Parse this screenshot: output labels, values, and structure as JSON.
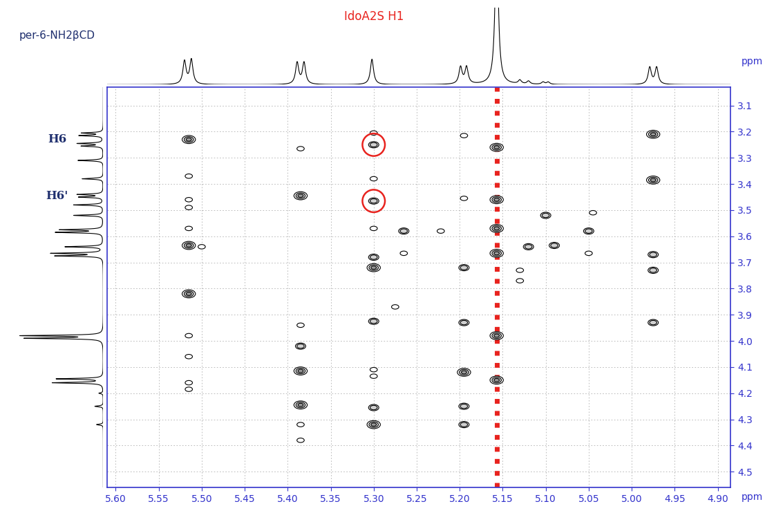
{
  "chart_data": {
    "type": "nmr_2d",
    "x_label": "ppm",
    "y_label": "ppm",
    "xlim": [
      5.61,
      4.885
    ],
    "ylim": [
      4.56,
      3.03
    ],
    "xticks": [
      {
        "value": 5.6,
        "label": "5.60"
      },
      {
        "value": 5.55,
        "label": "5.55"
      },
      {
        "value": 5.5,
        "label": "5.50"
      },
      {
        "value": 5.45,
        "label": "5.45"
      },
      {
        "value": 5.4,
        "label": "5.40"
      },
      {
        "value": 5.35,
        "label": "5.35"
      },
      {
        "value": 5.3,
        "label": "5.30"
      },
      {
        "value": 5.25,
        "label": "5.25"
      },
      {
        "value": 5.2,
        "label": "5.20"
      },
      {
        "value": 5.15,
        "label": "5.15"
      },
      {
        "value": 5.1,
        "label": "5.10"
      },
      {
        "value": 5.05,
        "label": "5.05"
      },
      {
        "value": 5.0,
        "label": "5.00"
      },
      {
        "value": 4.95,
        "label": "4.95"
      },
      {
        "value": 4.9,
        "label": "4.90"
      }
    ],
    "yticks": [
      3.1,
      3.2,
      3.3,
      3.4,
      3.5,
      3.6,
      3.7,
      3.8,
      3.9,
      4.0,
      4.1,
      4.2,
      4.3,
      4.4,
      4.5
    ],
    "grid": true,
    "color": "#000000",
    "cross_peaks": {
      "x": [
        5.515,
        5.515,
        5.515,
        5.515,
        5.515,
        5.515,
        5.5,
        5.515,
        5.515,
        5.515,
        5.515,
        5.515,
        5.385,
        5.385,
        5.385,
        5.385,
        5.385,
        5.385,
        5.385,
        5.385,
        5.3,
        5.3,
        5.3,
        5.3,
        5.3,
        5.3,
        5.3,
        5.3,
        5.3,
        5.3,
        5.3,
        5.3,
        5.265,
        5.265,
        5.222,
        5.275,
        5.195,
        5.195,
        5.195,
        5.195,
        5.195,
        5.195,
        5.195,
        5.157,
        5.157,
        5.157,
        5.157,
        5.157,
        5.157,
        5.12,
        5.09,
        5.13,
        5.13,
        5.1,
        5.05,
        5.05,
        5.045,
        4.975,
        4.975,
        4.975,
        4.975,
        4.975
      ],
      "y": [
        3.23,
        3.37,
        3.46,
        3.49,
        3.57,
        3.635,
        3.64,
        3.82,
        3.98,
        4.06,
        4.16,
        4.185,
        3.265,
        3.445,
        3.94,
        4.02,
        4.115,
        4.245,
        4.32,
        4.38,
        3.205,
        3.25,
        3.38,
        3.465,
        3.57,
        3.68,
        3.72,
        3.925,
        4.11,
        4.135,
        4.255,
        4.32,
        3.58,
        3.665,
        3.58,
        3.87,
        3.215,
        3.455,
        3.72,
        3.93,
        4.12,
        4.25,
        4.32,
        3.26,
        3.46,
        3.57,
        3.665,
        3.98,
        4.15,
        3.64,
        3.635,
        3.73,
        3.77,
        3.52,
        3.58,
        3.665,
        3.51,
        3.21,
        3.385,
        3.67,
        3.73,
        3.93
      ],
      "intensity": [
        3,
        1,
        1,
        1,
        1,
        3,
        1,
        3,
        1,
        1,
        1,
        1,
        1,
        3,
        1,
        2,
        3,
        3,
        1,
        1,
        1,
        2,
        1,
        2,
        1,
        2,
        3,
        2,
        1,
        1,
        2,
        3,
        2,
        1,
        1,
        1,
        1,
        1,
        2,
        2,
        3,
        2,
        2,
        3,
        3,
        3,
        3,
        3,
        3,
        2,
        2,
        1,
        1,
        2,
        2,
        1,
        1,
        3,
        3,
        2,
        2,
        2
      ]
    },
    "highlighted": {
      "x": [
        5.3,
        5.3
      ],
      "y": [
        3.25,
        3.465
      ],
      "color": "#e8231e"
    },
    "t1_noise": {
      "x": 5.157,
      "color": "#e8231e"
    },
    "top_label": {
      "text": "IdoA2S H1",
      "ppm": 5.3,
      "color": "#e8231e"
    },
    "top_spectrum": {
      "ppm": [
        5.52,
        5.512,
        5.389,
        5.381,
        5.302,
        5.199,
        5.192,
        5.157,
        5.13,
        5.12,
        5.103,
        5.097,
        4.979,
        4.971
      ],
      "height": [
        0.3,
        0.32,
        0.28,
        0.28,
        0.33,
        0.22,
        0.22,
        2.0,
        0.05,
        0.04,
        0.03,
        0.03,
        0.22,
        0.22
      ],
      "ylim": [
        0,
        1
      ]
    },
    "left_title": "per-6-NH2βCD",
    "left_labels": [
      {
        "text": "H6",
        "ppm": 3.23
      },
      {
        "text": "H6'",
        "ppm": 3.445
      }
    ],
    "left_spectrum": {
      "ppm": [
        3.205,
        3.215,
        3.245,
        3.255,
        3.31,
        3.38,
        3.44,
        3.45,
        3.48,
        3.52,
        3.575,
        3.585,
        3.64,
        3.665,
        3.675,
        3.98,
        3.99,
        4.145,
        4.16,
        4.2,
        4.25,
        4.32
      ],
      "height": [
        0.25,
        0.28,
        0.3,
        0.25,
        0.3,
        0.25,
        0.3,
        0.28,
        0.35,
        0.35,
        0.5,
        0.55,
        0.45,
        0.6,
        0.55,
        0.95,
        0.9,
        0.55,
        0.6,
        0.05,
        0.1,
        0.08
      ],
      "xlim": [
        1,
        0
      ]
    }
  }
}
